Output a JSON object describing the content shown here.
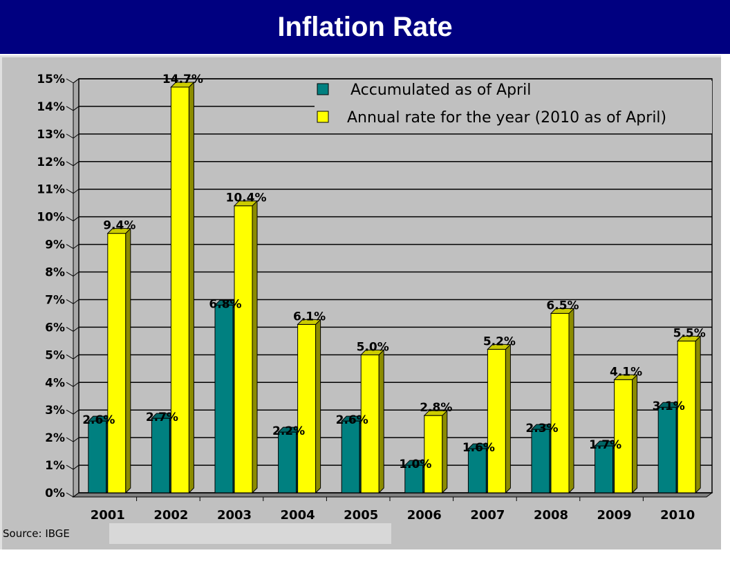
{
  "header": {
    "title": "Inflation Rate"
  },
  "source": "Source: IBGE",
  "chart_data": {
    "type": "bar",
    "title": "Inflation Rate",
    "xlabel": "",
    "ylabel": "",
    "ylim": [
      0,
      15
    ],
    "yticks": [
      "0%",
      "1%",
      "2%",
      "3%",
      "4%",
      "5%",
      "6%",
      "7%",
      "8%",
      "9%",
      "10%",
      "11%",
      "12%",
      "13%",
      "14%",
      "15%"
    ],
    "grid": true,
    "legend_position": "top-right",
    "categories": [
      "2001",
      "2002",
      "2003",
      "2004",
      "2005",
      "2006",
      "2007",
      "2008",
      "2009",
      "2010"
    ],
    "series": [
      {
        "name": "Accumulated as of April",
        "color": "#008080",
        "values": [
          2.6,
          2.7,
          6.8,
          2.2,
          2.6,
          1.0,
          1.6,
          2.3,
          1.7,
          3.1
        ],
        "labels": [
          "2.6%",
          "2.7%",
          "6.8%",
          "2.2%",
          "2.6%",
          "1.0%",
          "1.6%",
          "2.3%",
          "1.7%",
          "3.1%"
        ]
      },
      {
        "name": "Annual rate for the year (2010 as of April)",
        "color": "#ffff00",
        "values": [
          9.4,
          14.7,
          10.4,
          6.1,
          5.0,
          2.8,
          5.2,
          6.5,
          4.1,
          5.5
        ],
        "labels": [
          "9.4%",
          "14.7%",
          "10.4%",
          "6.1%",
          "5.0%",
          "2.8%",
          "5.2%",
          "6.5%",
          "4.1%",
          "5.5%"
        ]
      }
    ]
  }
}
